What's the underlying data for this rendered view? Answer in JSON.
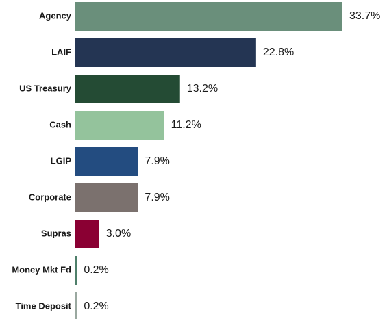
{
  "chart_data": {
    "type": "bar",
    "orientation": "horizontal",
    "categories": [
      "Agency",
      "LAIF",
      "US Treasury",
      "Cash",
      "LGIP",
      "Corporate",
      "Supras",
      "Money Mkt Fd",
      "Time Deposit"
    ],
    "values": [
      33.7,
      22.8,
      13.2,
      11.2,
      7.9,
      7.9,
      3.0,
      0.2,
      0.2
    ],
    "value_labels": [
      "33.7%",
      "22.8%",
      "13.2%",
      "11.2%",
      "7.9%",
      "7.9%",
      "3.0%",
      "0.2%",
      "0.2%"
    ],
    "colors": [
      "#6a8f7b",
      "#243553",
      "#244b34",
      "#94c39c",
      "#234c80",
      "#7b716e",
      "#8a0033",
      "#4e7f6a",
      "#9aa8a0"
    ]
  }
}
